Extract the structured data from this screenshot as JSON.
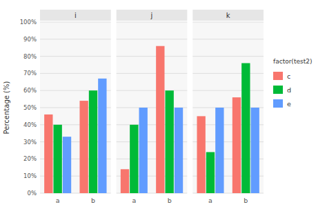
{
  "chart_data": [
    {
      "type": "bar",
      "title": "i",
      "ylabel": "Percentage (%)",
      "legend_title": "factor(test2)",
      "legend": "right",
      "grid": true,
      "categories": [
        "a",
        "b"
      ],
      "series": [
        {
          "name": "c",
          "color": "#F8766D",
          "values": [
            46,
            54
          ]
        },
        {
          "name": "d",
          "color": "#00BA38",
          "values": [
            40,
            60
          ]
        },
        {
          "name": "e",
          "color": "#619CFF",
          "values": [
            33,
            67
          ]
        }
      ],
      "ylim": [
        0,
        100
      ],
      "yticks": [
        {
          "value": 0,
          "label": "0%"
        },
        {
          "value": 10,
          "label": "10%"
        },
        {
          "value": 20,
          "label": "20%"
        },
        {
          "value": 30,
          "label": "30%"
        },
        {
          "value": 40,
          "label": "40%"
        },
        {
          "value": 50,
          "label": "50%"
        },
        {
          "value": 60,
          "label": "60%"
        },
        {
          "value": 70,
          "label": "70%"
        },
        {
          "value": 80,
          "label": "80%"
        },
        {
          "value": 90,
          "label": "90%"
        },
        {
          "value": 100,
          "label": "100%"
        }
      ]
    },
    {
      "type": "bar",
      "title": "j",
      "grid": true,
      "tick_labels": "x",
      "categories": [
        "a",
        "b"
      ],
      "series": [
        {
          "name": "c",
          "color": "#F8766D",
          "values": [
            14,
            86
          ]
        },
        {
          "name": "d",
          "color": "#00BA38",
          "values": [
            40,
            60
          ]
        },
        {
          "name": "e",
          "color": "#619CFF",
          "values": [
            50,
            50
          ]
        }
      ],
      "ylim": [
        0,
        100
      ],
      "yticks": [
        0,
        10,
        20,
        30,
        40,
        50,
        60,
        70,
        80,
        90,
        100
      ]
    },
    {
      "type": "bar",
      "title": "k",
      "grid": true,
      "tick_labels": "x",
      "categories": [
        "a",
        "b"
      ],
      "series": [
        {
          "name": "c",
          "color": "#F8766D",
          "values": [
            45,
            56
          ]
        },
        {
          "name": "d",
          "color": "#00BA38",
          "values": [
            24,
            76
          ]
        },
        {
          "name": "e",
          "color": "#619CFF",
          "values": [
            50,
            50
          ]
        }
      ],
      "ylim": [
        0,
        100
      ],
      "yticks": [
        0,
        10,
        20,
        30,
        40,
        50,
        60,
        70,
        80,
        90,
        100
      ]
    }
  ]
}
